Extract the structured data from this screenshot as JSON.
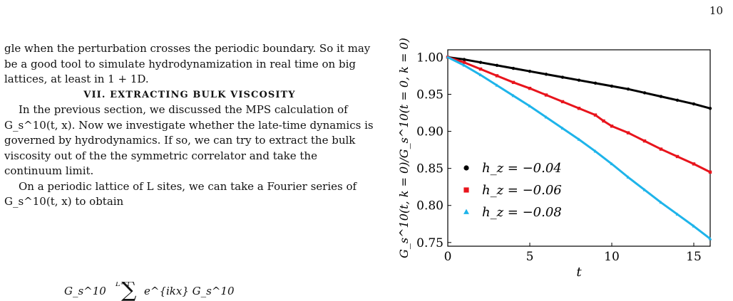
{
  "page_number": "10",
  "paragraph_1": "gle when the perturbation crosses the periodic boundary. So it may be a good tool to simulate hydrodynamization in real time on big lattices, at least in 1 + 1D.",
  "section_heading": "VII.   EXTRACTING BULK VISCOSITY",
  "paragraph_2": "In the previous section, we discussed the MPS calculation of G_s^10(t, x). Now we investigate whether the late-time dynamics is governed by hydrodynamics. If so, we can try to extract the bulk viscosity out of the the symmetric correlator and take the continuum limit.",
  "paragraph_3": "On a periodic lattice of L sites, we can take a Fourier series of G_s^10(t, x) to obtain",
  "equation_partial": "G_s^10",
  "equation_limit": "L−1",
  "equation_term": "e^{ikx} G_s^10",
  "chart_data": {
    "type": "scatter",
    "title": "",
    "xlabel": "t",
    "ylabel": "G_s^10(t, k = 0)/G_s^10(t = 0, k = 0)",
    "xlim": [
      0,
      16
    ],
    "ylim": [
      0.745,
      1.01
    ],
    "x_ticks": [
      0,
      5,
      10,
      15
    ],
    "x_tick_labels": [
      "0",
      "5",
      "10",
      "15"
    ],
    "y_ticks": [
      0.75,
      0.8,
      0.85,
      0.9,
      0.95,
      1.0
    ],
    "y_tick_labels": [
      "0.75",
      "0.80",
      "0.85",
      "0.90",
      "0.95",
      "1.00"
    ],
    "grid": false,
    "legend_position": "lower-left",
    "series": [
      {
        "name": "h_z = −0.04",
        "marker": "circle",
        "color": "#000000",
        "x": [
          0,
          1,
          2,
          3,
          4,
          5,
          6,
          7,
          8,
          9,
          10,
          11,
          12,
          13,
          14,
          15,
          16
        ],
        "y": [
          1.0,
          0.997,
          0.993,
          0.989,
          0.985,
          0.981,
          0.977,
          0.973,
          0.969,
          0.965,
          0.961,
          0.957,
          0.952,
          0.947,
          0.942,
          0.937,
          0.931
        ]
      },
      {
        "name": "h_z = −0.06",
        "marker": "square",
        "color": "#e8141c",
        "x": [
          0,
          1,
          2,
          3,
          4,
          5,
          6,
          7,
          8,
          9,
          9.5,
          10,
          11,
          12,
          13,
          14,
          15,
          16
        ],
        "y": [
          1.0,
          0.993,
          0.984,
          0.975,
          0.966,
          0.958,
          0.949,
          0.94,
          0.931,
          0.922,
          0.914,
          0.907,
          0.898,
          0.887,
          0.876,
          0.866,
          0.856,
          0.845
        ]
      },
      {
        "name": "h_z = −0.08",
        "marker": "triangle",
        "color": "#1eb4ea",
        "x": [
          0,
          1,
          2,
          3,
          4,
          5,
          6,
          7,
          8,
          9,
          10,
          11,
          12,
          13,
          14,
          15,
          16
        ],
        "y": [
          1.0,
          0.989,
          0.976,
          0.962,
          0.948,
          0.934,
          0.919,
          0.904,
          0.889,
          0.873,
          0.856,
          0.838,
          0.821,
          0.804,
          0.788,
          0.772,
          0.755
        ]
      }
    ]
  }
}
